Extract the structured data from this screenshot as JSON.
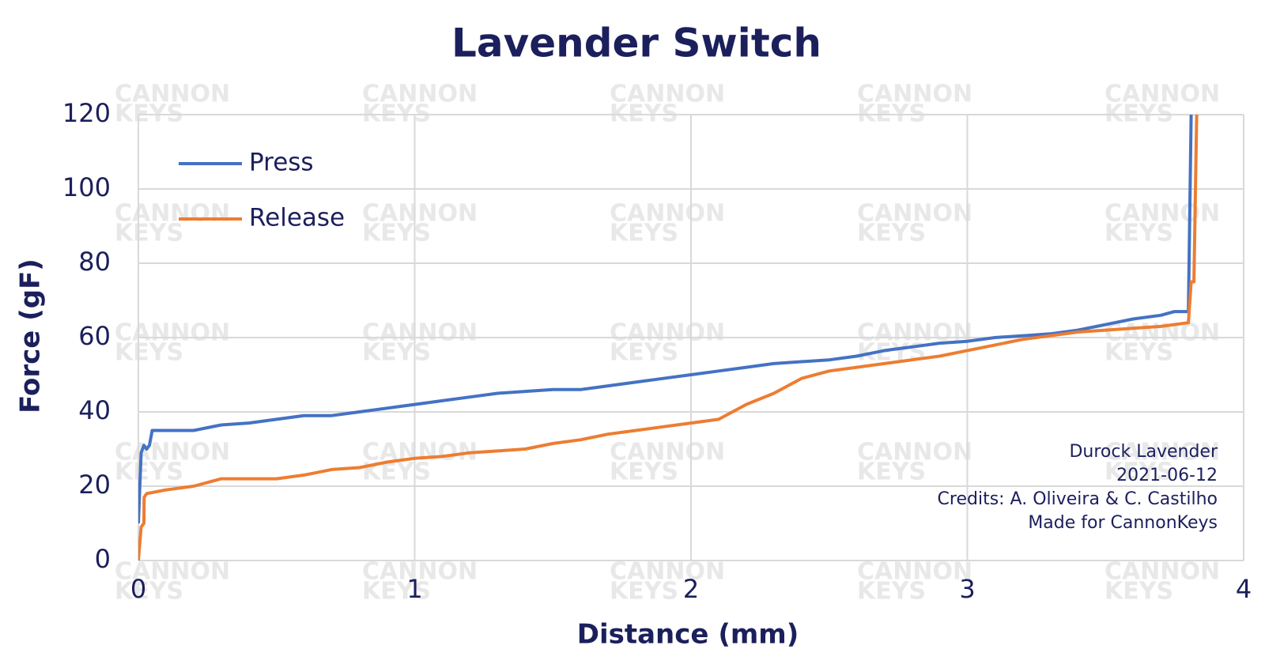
{
  "chart_data": {
    "type": "line",
    "title": "Lavender Switch",
    "x_label": "Distance (mm)",
    "y_label": "Force (gF)",
    "xlim": [
      0,
      4
    ],
    "xticks": [
      0,
      1,
      2,
      3,
      4
    ],
    "ylim": [
      0,
      120
    ],
    "yticks": [
      0,
      20,
      40,
      60,
      80,
      100,
      120
    ],
    "grid": true,
    "legend": "upper left",
    "annotations": [
      "Durock Lavender",
      "2021-06-12",
      "Credits: A. Oliveira & C. Castilho",
      "Made for CannonKeys"
    ],
    "watermark": [
      "CANNON",
      "KEYS"
    ],
    "series": [
      {
        "name": "Press",
        "color": "#4472c4",
        "x": [
          0,
          0.01,
          0.02,
          0.03,
          0.04,
          0.05,
          0.1,
          0.2,
          0.3,
          0.4,
          0.5,
          0.6,
          0.7,
          0.8,
          0.9,
          1.0,
          1.1,
          1.2,
          1.3,
          1.4,
          1.5,
          1.6,
          1.7,
          1.8,
          1.9,
          2.0,
          2.1,
          2.2,
          2.3,
          2.4,
          2.5,
          2.6,
          2.7,
          2.8,
          2.9,
          3.0,
          3.1,
          3.2,
          3.3,
          3.4,
          3.5,
          3.6,
          3.7,
          3.75,
          3.8,
          3.81
        ],
        "values": [
          10,
          29,
          31,
          30,
          31,
          35,
          35,
          35,
          36.5,
          37,
          38,
          39,
          39,
          40,
          41,
          42,
          43,
          44,
          45,
          45.5,
          46,
          46,
          47,
          48,
          49,
          50,
          51,
          52,
          53,
          53.5,
          54,
          55,
          56.5,
          57.5,
          58.5,
          59,
          60,
          60.5,
          61,
          62,
          63.5,
          65,
          66,
          67,
          67,
          120
        ]
      },
      {
        "name": "Release",
        "color": "#ed7d31",
        "x": [
          0,
          0.01,
          0.02,
          0.021,
          0.03,
          0.1,
          0.2,
          0.3,
          0.4,
          0.5,
          0.6,
          0.7,
          0.8,
          0.9,
          1.0,
          1.1,
          1.2,
          1.3,
          1.4,
          1.5,
          1.6,
          1.7,
          1.8,
          1.9,
          2.0,
          2.1,
          2.2,
          2.3,
          2.4,
          2.5,
          2.6,
          2.7,
          2.8,
          2.9,
          3.0,
          3.1,
          3.2,
          3.3,
          3.4,
          3.5,
          3.6,
          3.7,
          3.8,
          3.81,
          3.82,
          3.83
        ],
        "values": [
          0,
          9,
          10,
          17,
          18,
          19,
          20,
          22,
          22,
          22,
          23,
          24.5,
          25,
          26.5,
          27.5,
          28,
          29,
          29.5,
          30,
          31.5,
          32.5,
          34,
          35,
          36,
          37,
          38,
          42,
          45,
          49,
          51,
          52,
          53,
          54,
          55,
          56.5,
          58,
          59.5,
          60.5,
          61.5,
          62,
          62.5,
          63,
          64,
          75,
          75,
          120
        ]
      }
    ]
  }
}
